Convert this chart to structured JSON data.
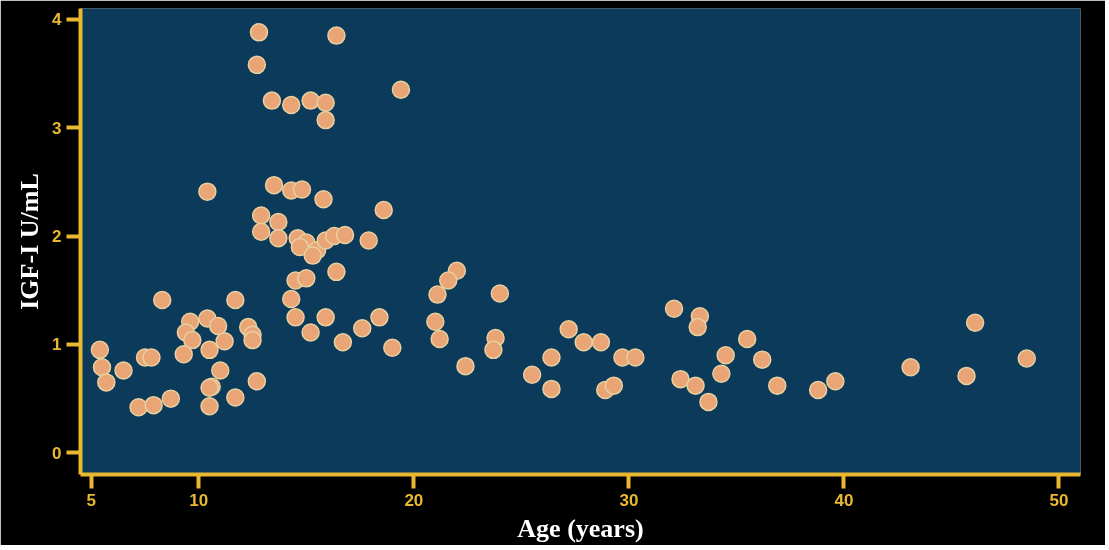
{
  "chart_data": {
    "type": "scatter",
    "xlabel": "Age (years)",
    "ylabel": "IGF-I U/mL",
    "xlim": [
      4.5,
      51
    ],
    "ylim": [
      -0.2,
      4.1
    ],
    "xticks": [
      5,
      10,
      20,
      30,
      40,
      50
    ],
    "yticks": [
      0,
      1,
      2,
      3,
      4
    ],
    "grid": false,
    "marker": "circle",
    "series": [
      {
        "color": "#e9a575",
        "x": [
          12.8,
          16.4,
          12.7,
          19.4,
          13.4,
          14.3,
          15.2,
          15.9,
          15.9,
          10.4,
          13.5,
          14.3,
          14.8,
          15.8,
          18.6,
          12.9,
          13.7,
          12.9,
          13.7,
          14.6,
          15.0,
          15.5,
          15.9,
          16.3,
          16.8,
          17.9,
          8.3,
          11.7,
          9.6,
          10.4,
          10.9,
          9.4,
          9.7,
          10.5,
          11.2,
          12.3,
          12.5,
          12.5,
          9.3,
          5.4,
          5.5,
          5.7,
          6.5,
          7.5,
          7.8,
          11.0,
          10.6,
          10.5,
          12.7,
          7.2,
          7.9,
          8.7,
          10.5,
          11.7,
          14.7,
          15.3,
          14.5,
          15.0,
          14.3,
          16.4,
          14.5,
          15.9,
          15.2,
          16.7,
          17.6,
          18.4,
          19.0,
          22.0,
          21.6,
          21.1,
          24.0,
          21.0,
          21.2,
          22.4,
          23.8,
          23.7,
          25.5,
          26.4,
          26.4,
          27.2,
          27.9,
          28.7,
          29.7,
          30.3,
          28.9,
          29.3,
          32.1,
          33.3,
          33.2,
          32.4,
          33.1,
          33.7,
          34.5,
          34.3,
          35.5,
          36.2,
          36.9,
          38.8,
          39.6,
          43.1,
          46.1,
          45.7,
          48.5
        ],
        "values": [
          3.88,
          3.85,
          3.58,
          3.35,
          3.25,
          3.21,
          3.25,
          3.23,
          3.07,
          2.41,
          2.47,
          2.42,
          2.43,
          2.34,
          2.24,
          2.19,
          2.13,
          2.04,
          1.98,
          1.98,
          1.94,
          1.87,
          1.96,
          2.0,
          2.01,
          1.96,
          1.41,
          1.41,
          1.21,
          1.24,
          1.17,
          1.11,
          1.04,
          0.95,
          1.03,
          1.16,
          1.09,
          1.04,
          0.91,
          0.95,
          0.79,
          0.65,
          0.76,
          0.88,
          0.88,
          0.76,
          0.61,
          0.6,
          0.66,
          0.42,
          0.44,
          0.5,
          0.43,
          0.51,
          1.9,
          1.82,
          1.59,
          1.61,
          1.42,
          1.67,
          1.25,
          1.25,
          1.11,
          1.02,
          1.15,
          1.25,
          0.97,
          1.68,
          1.59,
          1.46,
          1.47,
          1.21,
          1.05,
          0.8,
          1.06,
          0.95,
          0.72,
          0.88,
          0.59,
          1.14,
          1.02,
          1.02,
          0.88,
          0.88,
          0.58,
          0.62,
          1.33,
          1.26,
          1.16,
          0.68,
          0.62,
          0.47,
          0.9,
          0.73,
          1.05,
          0.86,
          0.62,
          0.58,
          0.66,
          0.79,
          1.2,
          0.71,
          0.87
        ]
      }
    ]
  }
}
